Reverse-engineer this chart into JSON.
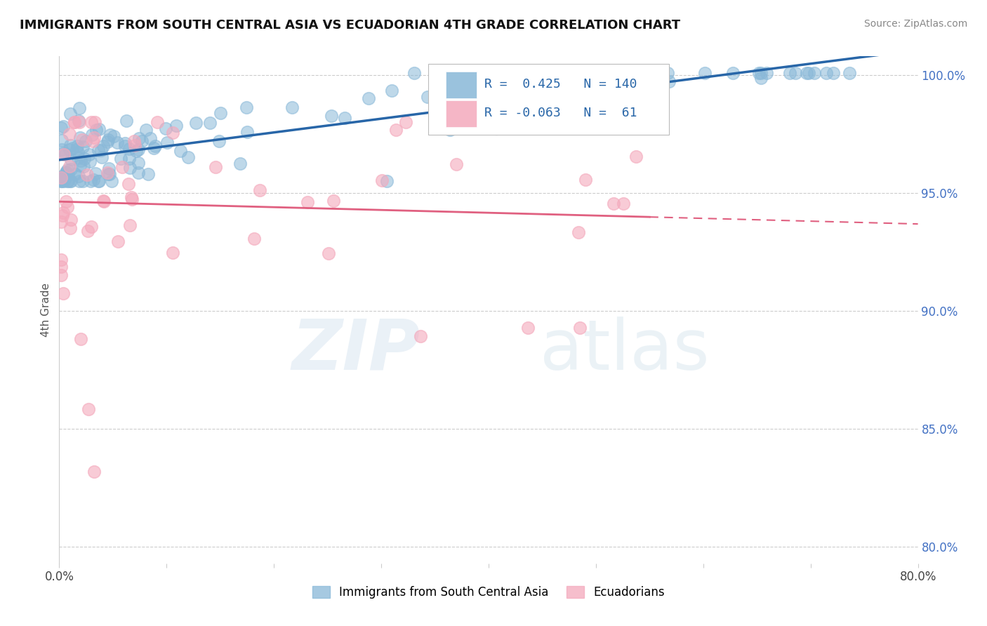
{
  "title": "IMMIGRANTS FROM SOUTH CENTRAL ASIA VS ECUADORIAN 4TH GRADE CORRELATION CHART",
  "source": "Source: ZipAtlas.com",
  "ylabel_label": "4th Grade",
  "xmin": 0.0,
  "xmax": 0.8,
  "ymin": 0.793,
  "ymax": 1.008,
  "yticks": [
    0.8,
    0.85,
    0.9,
    0.95,
    1.0
  ],
  "ytick_labels": [
    "80.0%",
    "85.0%",
    "90.0%",
    "95.0%",
    "100.0%"
  ],
  "xticks": [
    0.0,
    0.1,
    0.2,
    0.3,
    0.4,
    0.5,
    0.6,
    0.7,
    0.8
  ],
  "xtick_labels": [
    "0.0%",
    "",
    "",
    "",
    "",
    "",
    "",
    "",
    "80.0%"
  ],
  "blue_r": 0.425,
  "blue_n": 140,
  "pink_r": -0.063,
  "pink_n": 61,
  "blue_color": "#89b8d8",
  "pink_color": "#f4a9bc",
  "blue_line_color": "#2866a8",
  "pink_line_color": "#e06080",
  "legend_blue_label": "Immigrants from South Central Asia",
  "legend_pink_label": "Ecuadorians",
  "blue_seed": 42,
  "pink_seed": 99
}
